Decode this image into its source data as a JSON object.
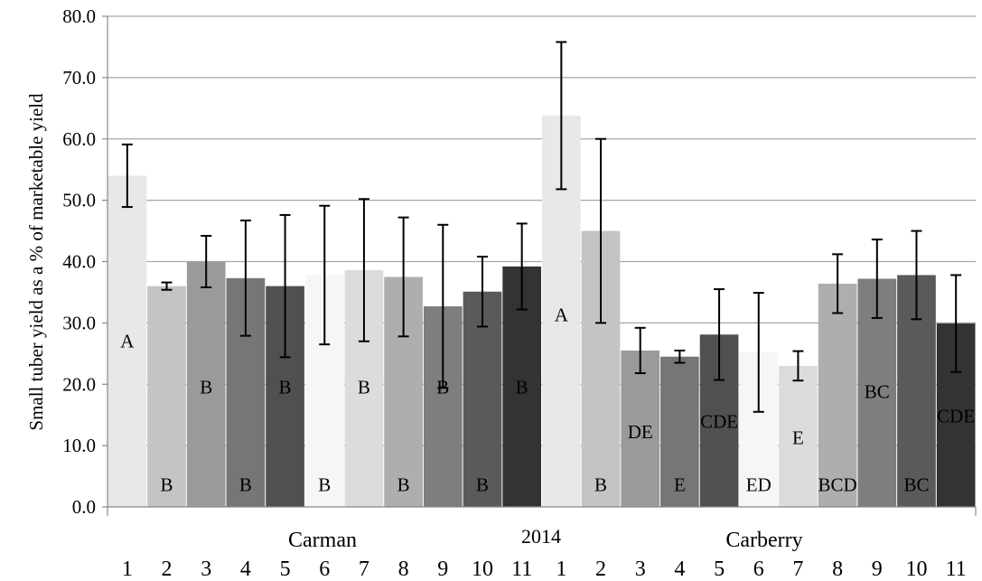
{
  "chart_data": {
    "type": "bar",
    "title": "",
    "ylabel": "Small tuber yield as a % of marketable yield",
    "xlabel": "",
    "ylim": [
      0,
      80
    ],
    "yticks": [
      "0.0",
      "10.0",
      "20.0",
      "30.0",
      "40.0",
      "50.0",
      "60.0",
      "70.0",
      "80.0"
    ],
    "grid": "horizontal",
    "legend": "none",
    "year_label": "2014",
    "groups": [
      {
        "name": "Carman",
        "categories": [
          "1",
          "2",
          "3",
          "4",
          "5",
          "6",
          "7",
          "8",
          "9",
          "10",
          "11"
        ],
        "values": [
          54.0,
          36.0,
          40.0,
          37.3,
          36.0,
          37.8,
          38.6,
          37.5,
          32.7,
          35.1,
          39.2
        ],
        "error": [
          5.1,
          0.6,
          4.2,
          9.4,
          11.6,
          11.3,
          11.6,
          9.7,
          13.3,
          5.7,
          7.0
        ],
        "letters": [
          "A",
          "B",
          "B",
          "B",
          "B",
          "B",
          "B",
          "B",
          "B",
          "B",
          "B"
        ],
        "letters_upper": [
          "A",
          "",
          "B",
          "",
          "B",
          "",
          "B",
          "",
          "B",
          "",
          "B"
        ]
      },
      {
        "name": "Carberry",
        "categories": [
          "1",
          "2",
          "3",
          "4",
          "5",
          "6",
          "7",
          "8",
          "9",
          "10",
          "11"
        ],
        "values": [
          63.8,
          45.0,
          25.5,
          24.5,
          28.1,
          25.2,
          23.0,
          36.4,
          37.2,
          37.8,
          29.9
        ],
        "error": [
          12.0,
          15.0,
          3.7,
          1.0,
          7.4,
          9.7,
          2.4,
          4.8,
          6.4,
          7.2,
          7.9
        ],
        "letters": [
          "A",
          "B",
          "DE",
          "E",
          "CDE",
          "ED",
          "E",
          "BCD",
          "BC",
          "BC",
          "CDE"
        ],
        "letters_upper": [
          "A",
          "",
          "DE",
          "",
          "CDE",
          "",
          "E",
          "",
          "BC",
          "",
          "CDE"
        ]
      }
    ],
    "colors": [
      "#e8e8e8",
      "#c4c4c4",
      "#9a9a9a",
      "#767676",
      "#505050",
      "#f6f6f6",
      "#dcdcdc",
      "#aeaeae",
      "#7e7e7e",
      "#5a5a5a",
      "#333333"
    ]
  }
}
